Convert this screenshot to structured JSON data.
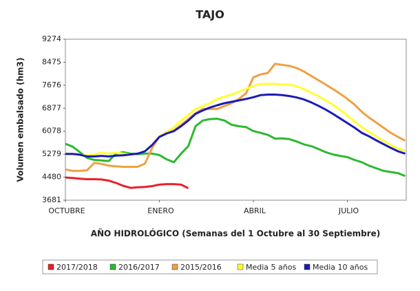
{
  "chart_data": {
    "type": "line",
    "title": "TAJO",
    "y_label": "Volumen embalsado (hm3)",
    "x_label": "AÑO HIDROLÓGICO  (Semanas del 1 Octubre al 30 Septiembre)",
    "categories": [
      "OCTUBRE",
      null,
      null,
      null,
      null,
      null,
      null,
      null,
      null,
      null,
      null,
      null,
      null,
      "ENERO",
      null,
      null,
      null,
      null,
      null,
      null,
      null,
      null,
      null,
      null,
      null,
      null,
      "ABRIL",
      null,
      null,
      null,
      null,
      null,
      null,
      null,
      null,
      null,
      null,
      null,
      null,
      "JULIO",
      null,
      null,
      null,
      null,
      null,
      null,
      null,
      null
    ],
    "ylim": [
      3681,
      9274
    ],
    "yticks": [
      3681,
      4480,
      5279,
      6078,
      6877,
      7676,
      8475,
      9274
    ],
    "grid": false,
    "legend": "bottom",
    "series": [
      {
        "name": "2017/2018",
        "color": "#e8202a",
        "values": [
          4470,
          4450,
          4430,
          4410,
          4410,
          4400,
          4360,
          4280,
          4180,
          4110,
          4130,
          4140,
          4170,
          4220,
          4240,
          4240,
          4220,
          4100,
          null,
          null,
          null,
          null,
          null,
          null,
          null,
          null,
          null,
          null,
          null,
          null,
          null,
          null,
          null,
          null,
          null,
          null,
          null,
          null,
          null,
          null,
          null,
          null,
          null,
          null,
          null,
          null,
          null,
          null
        ]
      },
      {
        "name": "2016/2017",
        "color": "#2db82d",
        "values": [
          5640,
          5540,
          5350,
          5150,
          5080,
          5060,
          5040,
          5300,
          5350,
          5300,
          5280,
          5300,
          5300,
          5250,
          5100,
          5000,
          5300,
          5560,
          6250,
          6450,
          6500,
          6510,
          6450,
          6300,
          6250,
          6220,
          6080,
          6020,
          5950,
          5820,
          5830,
          5800,
          5720,
          5620,
          5560,
          5460,
          5350,
          5270,
          5220,
          5180,
          5080,
          5000,
          4880,
          4790,
          4700,
          4660,
          4620,
          4520
        ]
      },
      {
        "name": "2015/2016",
        "color": "#f0a040",
        "values": [
          4750,
          4700,
          4700,
          4720,
          4980,
          4940,
          4880,
          4860,
          4840,
          4840,
          4840,
          4950,
          5500,
          5900,
          6000,
          6100,
          6300,
          6500,
          6700,
          6850,
          6850,
          6850,
          6950,
          7050,
          7200,
          7400,
          7950,
          8050,
          8100,
          8420,
          8380,
          8350,
          8270,
          8150,
          8000,
          7850,
          7700,
          7540,
          7380,
          7200,
          7000,
          6750,
          6550,
          6380,
          6200,
          6020,
          5880,
          5750
        ]
      },
      {
        "name": "Media 5 años",
        "color": "#ffff33",
        "values": [
          5300,
          5280,
          5250,
          5240,
          5260,
          5340,
          5300,
          5330,
          5300,
          5260,
          5300,
          5380,
          5600,
          5900,
          6050,
          6200,
          6450,
          6650,
          6850,
          6950,
          7050,
          7200,
          7280,
          7350,
          7450,
          7550,
          7650,
          7720,
          7720,
          7720,
          7700,
          7700,
          7640,
          7540,
          7420,
          7300,
          7150,
          7000,
          6820,
          6620,
          6420,
          6220,
          6050,
          5900,
          5750,
          5600,
          5480,
          5400
        ]
      },
      {
        "name": "Media 10 años",
        "color": "#1a1ab8",
        "values": [
          5290,
          5290,
          5260,
          5200,
          5200,
          5220,
          5200,
          5230,
          5240,
          5270,
          5300,
          5380,
          5600,
          5880,
          6000,
          6080,
          6250,
          6450,
          6680,
          6800,
          6900,
          6980,
          7050,
          7100,
          7150,
          7200,
          7260,
          7330,
          7350,
          7350,
          7330,
          7300,
          7250,
          7180,
          7080,
          6960,
          6830,
          6680,
          6520,
          6360,
          6200,
          6020,
          5900,
          5760,
          5630,
          5500,
          5380,
          5300
        ]
      }
    ]
  }
}
